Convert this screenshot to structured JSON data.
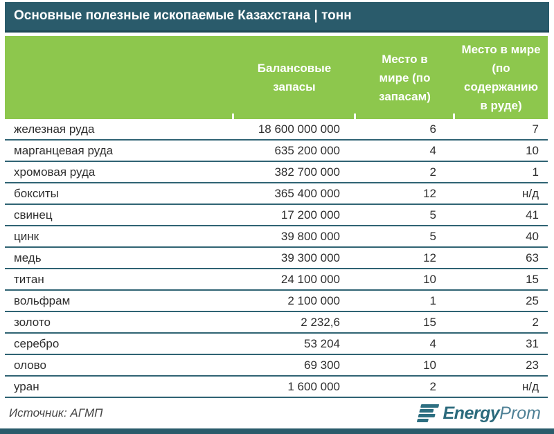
{
  "title": "Основные полезные ископаемые Казахстана | тонн",
  "header": {
    "col_reserves": "Балансовые запасы",
    "col_rank_reserves": "Место в мире (по запасам)",
    "col_rank_ore": "Место в мире (по содержанию в руде)"
  },
  "chart_data": {
    "type": "table",
    "title": "Основные полезные ископаемые Казахстана | тонн",
    "unit": "тонн",
    "columns": [
      "",
      "Балансовые запасы",
      "Место в мире (по запасам)",
      "Место в мире (по содержанию в руде)"
    ],
    "rows": [
      {
        "name": "железная руда",
        "reserves": "18 600 000 000",
        "rank_reserves": "6",
        "rank_ore": "7"
      },
      {
        "name": "марганцевая руда",
        "reserves": "635 200 000",
        "rank_reserves": "4",
        "rank_ore": "10"
      },
      {
        "name": "хромовая руда",
        "reserves": "382 700 000",
        "rank_reserves": "2",
        "rank_ore": "1"
      },
      {
        "name": "бокситы",
        "reserves": "365 400 000",
        "rank_reserves": "12",
        "rank_ore": "н/д"
      },
      {
        "name": "свинец",
        "reserves": "17 200 000",
        "rank_reserves": "5",
        "rank_ore": "41"
      },
      {
        "name": "цинк",
        "reserves": "39 800 000",
        "rank_reserves": "5",
        "rank_ore": "40"
      },
      {
        "name": "медь",
        "reserves": "39 300 000",
        "rank_reserves": "12",
        "rank_ore": "63"
      },
      {
        "name": "титан",
        "reserves": "24 100 000",
        "rank_reserves": "10",
        "rank_ore": "15"
      },
      {
        "name": "вольфрам",
        "reserves": "2 100 000",
        "rank_reserves": "1",
        "rank_ore": "25"
      },
      {
        "name": "золото",
        "reserves": "2 232,6",
        "rank_reserves": "15",
        "rank_ore": "2"
      },
      {
        "name": "серебро",
        "reserves": "53 204",
        "rank_reserves": "4",
        "rank_ore": "31"
      },
      {
        "name": "олово",
        "reserves": "69 300",
        "rank_reserves": "10",
        "rank_ore": "23"
      },
      {
        "name": "уран",
        "reserves": "1 600 000",
        "rank_reserves": "2",
        "rank_ore": "н/д"
      }
    ]
  },
  "footer": {
    "source": "Источник: АГМП",
    "logo_bold": "Energy",
    "logo_light": "Prom"
  },
  "colors": {
    "title_bar_bg": "#2a5b6b",
    "header_green": "#8dc74d",
    "row_separator": "#2f6373",
    "logo_teal": "#2d6f81",
    "bottom_bar": "#2a5b6b"
  }
}
